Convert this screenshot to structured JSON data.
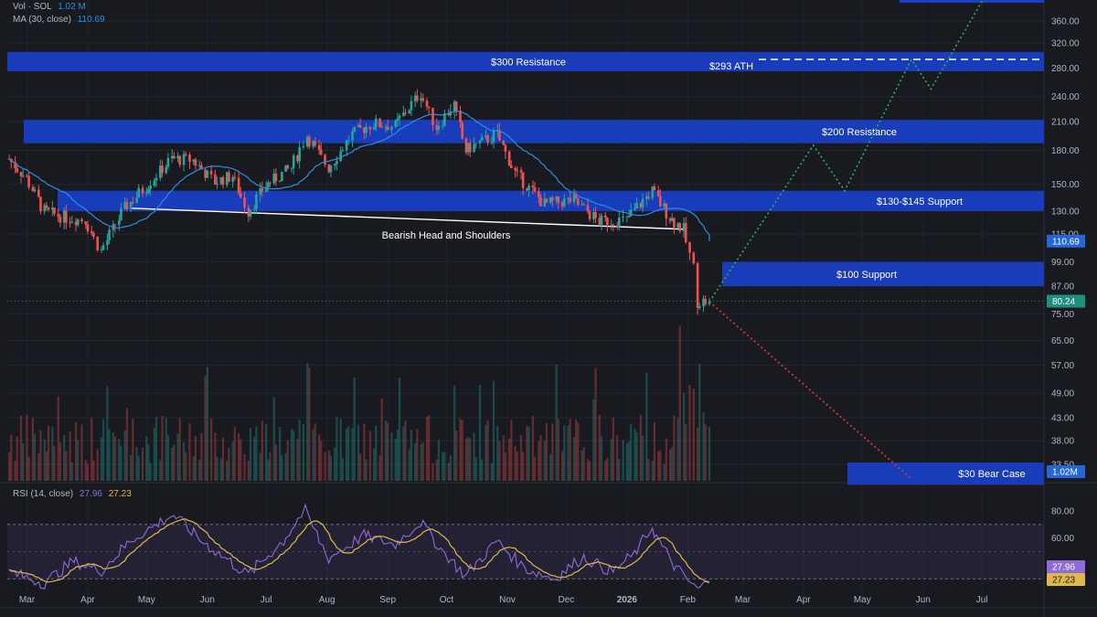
{
  "legend": {
    "vol_label": "Vol · SOL",
    "vol_value": "1.02 M",
    "ma_label": "MA (30, close)",
    "ma_value": "110.69",
    "rsi_label": "RSI (14, close)",
    "rsi_value": "27.96",
    "rsi_ma_value": "27.23"
  },
  "colors": {
    "background": "#181a20",
    "zone": "#1a3fc8",
    "up_candle": "#26a69a",
    "down_candle": "#ef5350",
    "ma_line": "#2a8fe0",
    "rsi_line": "#8e6bd8",
    "rsi_ma": "#e0b84a",
    "price_badge": "#1e9080",
    "ma_badge": "#2466d8",
    "bull_path": "#2fb34a",
    "bear_path": "#e0403a"
  },
  "chart_data": [
    {
      "type": "candlestick",
      "title": "",
      "price_axis": {
        "scale": "log",
        "ticks": [
          "360.00",
          "320.00",
          "280.00",
          "240.00",
          "210.00",
          "180.00",
          "150.00",
          "130.00",
          "115.00",
          "99.00",
          "87.00",
          "75.00",
          "65.00",
          "57.00",
          "49.00",
          "43.00",
          "38.00",
          "33.50"
        ]
      },
      "x_axis_labels": [
        "Mar",
        "Apr",
        "May",
        "Jun",
        "Jul",
        "Aug",
        "Sep",
        "Oct",
        "Nov",
        "Dec",
        "2026",
        "Feb",
        "Mar",
        "Apr",
        "May",
        "Jun",
        "Jul"
      ],
      "price_path": [
        {
          "t": "2025-02-20",
          "p": 172
        },
        {
          "t": "2025-03-01",
          "p": 155
        },
        {
          "t": "2025-03-10",
          "p": 130
        },
        {
          "t": "2025-03-20",
          "p": 126
        },
        {
          "t": "2025-03-31",
          "p": 124
        },
        {
          "t": "2025-04-08",
          "p": 105
        },
        {
          "t": "2025-04-20",
          "p": 132
        },
        {
          "t": "2025-05-01",
          "p": 148
        },
        {
          "t": "2025-05-14",
          "p": 172
        },
        {
          "t": "2025-05-25",
          "p": 171
        },
        {
          "t": "2025-06-05",
          "p": 152
        },
        {
          "t": "2025-06-14",
          "p": 157
        },
        {
          "t": "2025-06-22",
          "p": 130
        },
        {
          "t": "2025-07-01",
          "p": 149
        },
        {
          "t": "2025-07-14",
          "p": 164
        },
        {
          "t": "2025-07-22",
          "p": 195
        },
        {
          "t": "2025-08-02",
          "p": 164
        },
        {
          "t": "2025-08-14",
          "p": 196
        },
        {
          "t": "2025-08-25",
          "p": 208
        },
        {
          "t": "2025-09-05",
          "p": 205
        },
        {
          "t": "2025-09-18",
          "p": 245
        },
        {
          "t": "2025-09-26",
          "p": 204
        },
        {
          "t": "2025-10-05",
          "p": 230
        },
        {
          "t": "2025-10-11",
          "p": 180
        },
        {
          "t": "2025-10-27",
          "p": 196
        },
        {
          "t": "2025-11-05",
          "p": 160
        },
        {
          "t": "2025-11-20",
          "p": 135
        },
        {
          "t": "2025-12-05",
          "p": 138
        },
        {
          "t": "2025-12-18",
          "p": 123
        },
        {
          "t": "2026-01-01",
          "p": 124
        },
        {
          "t": "2026-01-14",
          "p": 145
        },
        {
          "t": "2026-01-23",
          "p": 126
        },
        {
          "t": "2026-01-30",
          "p": 118
        },
        {
          "t": "2026-02-04",
          "p": 96
        },
        {
          "t": "2026-02-06",
          "p": 80
        },
        {
          "t": "2026-02-12",
          "p": 80.24
        }
      ],
      "last_price": "80.24",
      "ma_30_last": "110.69",
      "volume_last": "1.02M",
      "zones": [
        {
          "label": "$300 Resistance",
          "low": 275,
          "high": 305
        },
        {
          "label": "$200 Resistance",
          "low": 187,
          "high": 212
        },
        {
          "label": "$130-$145 Support",
          "low": 130,
          "high": 145
        },
        {
          "label": "$100 Support",
          "low": 87,
          "high": 99
        },
        {
          "label": "$30 Bear Case",
          "low": 30,
          "high": 33.8
        }
      ],
      "ath": {
        "label": "$293 ATH",
        "price": 293
      },
      "annotation": "Bearish Head and Shoulders",
      "neckline": [
        {
          "t": "2025-04-23",
          "p": 132
        },
        {
          "t": "2026-01-30",
          "p": 118
        }
      ],
      "bull_scenario": [
        {
          "t": "2026-02-12",
          "p": 80
        },
        {
          "t": "2026-04-06",
          "p": 185
        },
        {
          "t": "2026-04-22",
          "p": 145
        },
        {
          "t": "2026-05-26",
          "p": 293
        },
        {
          "t": "2026-06-05",
          "p": 250
        },
        {
          "t": "2026-07-01",
          "p": 400
        }
      ],
      "bear_scenario": [
        {
          "t": "2026-02-12",
          "p": 80
        },
        {
          "t": "2026-05-26",
          "p": 31
        }
      ]
    },
    {
      "type": "line",
      "title": "RSI (14, close)",
      "y_ticks": [
        "80.00",
        "60.00",
        "40.00"
      ],
      "bands": [
        30,
        70
      ],
      "series": [
        {
          "name": "RSI",
          "last": "27.96"
        },
        {
          "name": "MA",
          "last": "27.23"
        }
      ],
      "rsi_path": [
        {
          "t": "2025-02-20",
          "p": 35
        },
        {
          "t": "2025-03-10",
          "p": 27
        },
        {
          "t": "2025-03-25",
          "p": 43
        },
        {
          "t": "2025-04-08",
          "p": 36
        },
        {
          "t": "2025-04-25",
          "p": 60
        },
        {
          "t": "2025-05-15",
          "p": 77
        },
        {
          "t": "2025-06-01",
          "p": 55
        },
        {
          "t": "2025-06-22",
          "p": 33
        },
        {
          "t": "2025-07-10",
          "p": 58
        },
        {
          "t": "2025-07-21",
          "p": 80
        },
        {
          "t": "2025-08-02",
          "p": 45
        },
        {
          "t": "2025-08-20",
          "p": 62
        },
        {
          "t": "2025-09-05",
          "p": 55
        },
        {
          "t": "2025-09-18",
          "p": 72
        },
        {
          "t": "2025-10-02",
          "p": 46
        },
        {
          "t": "2025-10-11",
          "p": 32
        },
        {
          "t": "2025-10-27",
          "p": 58
        },
        {
          "t": "2025-11-10",
          "p": 38
        },
        {
          "t": "2025-11-25",
          "p": 30
        },
        {
          "t": "2025-12-10",
          "p": 46
        },
        {
          "t": "2025-12-25",
          "p": 35
        },
        {
          "t": "2026-01-05",
          "p": 48
        },
        {
          "t": "2026-01-14",
          "p": 68
        },
        {
          "t": "2026-01-24",
          "p": 42
        },
        {
          "t": "2026-02-06",
          "p": 22
        },
        {
          "t": "2026-02-12",
          "p": 27.96
        }
      ]
    }
  ]
}
